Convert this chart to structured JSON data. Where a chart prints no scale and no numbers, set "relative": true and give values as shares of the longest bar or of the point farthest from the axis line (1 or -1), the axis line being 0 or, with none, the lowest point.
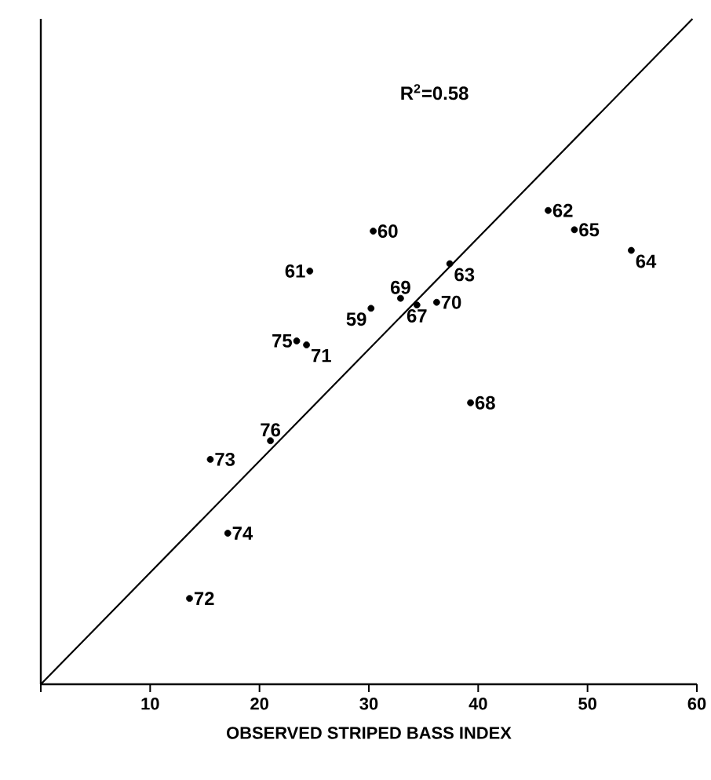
{
  "chart_data": {
    "type": "scatter",
    "xlabel": "OBSERVED STRIPED BASS INDEX",
    "xlim": [
      0,
      60
    ],
    "xticks": [
      {
        "value": 0,
        "label": null
      },
      10,
      20,
      30,
      40,
      50,
      60
    ],
    "relative": true,
    "series": [
      {
        "type": "scatter",
        "marker": "circle",
        "color": "#000000",
        "x": [
          30.2,
          30.4,
          24.6,
          46.4,
          37.4,
          54.0,
          48.8,
          34.4,
          39.3,
          32.9,
          36.2,
          24.3,
          13.6,
          15.5,
          17.1,
          23.4,
          21.0
        ],
        "values": [
          0.565,
          0.681,
          0.621,
          0.712,
          0.632,
          0.652,
          0.683,
          0.57,
          0.423,
          0.58,
          0.574,
          0.51,
          0.129,
          0.338,
          0.227,
          0.516,
          0.366
        ]
      },
      {
        "type": "line",
        "marker": "none",
        "line_style": "solid",
        "color": "#000000",
        "x": [
          0,
          59.6
        ],
        "values": [
          0,
          1
        ]
      }
    ],
    "annotations": [
      "R$^{2}$=0.58",
      {
        "text": "59",
        "x": 30.2,
        "y": 0.565
      },
      {
        "text": "60",
        "x": 30.4,
        "y": 0.681
      },
      {
        "text": "61",
        "x": 24.6,
        "y": 0.621
      },
      {
        "text": "62",
        "x": 46.4,
        "y": 0.712
      },
      {
        "text": "63",
        "x": 37.4,
        "y": 0.632
      },
      {
        "text": "64",
        "x": 54.0,
        "y": 0.652
      },
      {
        "text": "65",
        "x": 48.8,
        "y": 0.683
      },
      {
        "text": "67",
        "x": 34.4,
        "y": 0.57
      },
      {
        "text": "68",
        "x": 39.3,
        "y": 0.423
      },
      {
        "text": "69",
        "x": 32.9,
        "y": 0.58
      },
      {
        "text": "70",
        "x": 36.2,
        "y": 0.574
      },
      {
        "text": "71",
        "x": 24.3,
        "y": 0.51
      },
      {
        "text": "72",
        "x": 13.6,
        "y": 0.129
      },
      {
        "text": "73",
        "x": 15.5,
        "y": 0.338
      },
      {
        "text": "74",
        "x": 17.1,
        "y": 0.227
      },
      {
        "text": "75",
        "x": 23.4,
        "y": 0.516
      },
      {
        "text": "76",
        "x": 21.0,
        "y": 0.366
      }
    ]
  }
}
